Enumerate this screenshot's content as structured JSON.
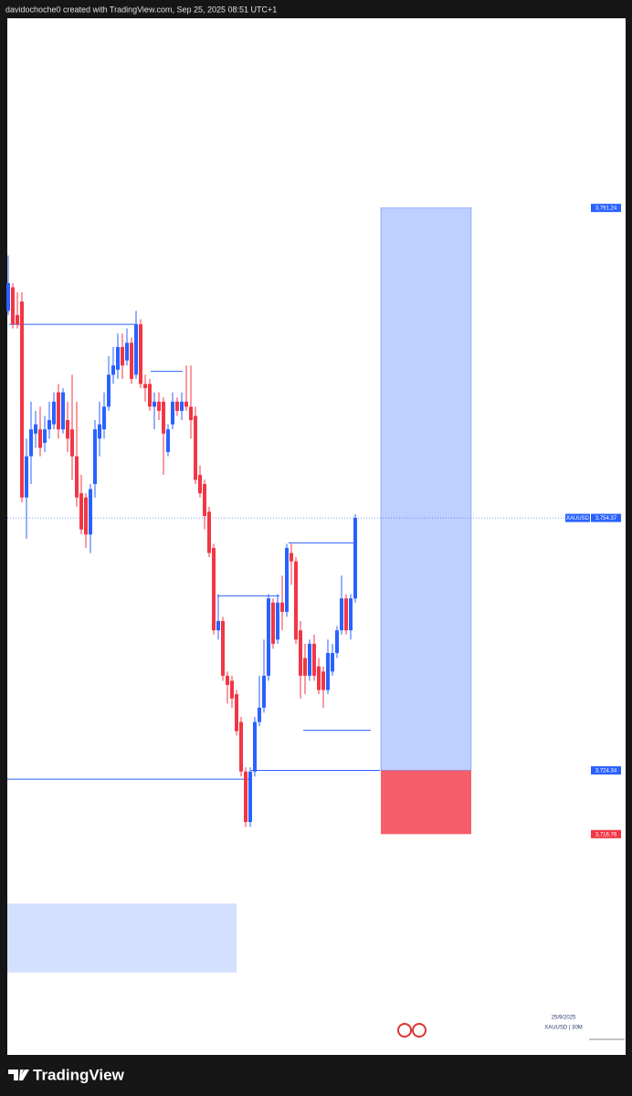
{
  "header": {
    "text": "davidochoche0 created with TradingView.com, Sep 25, 2025 08:51 UTC+1"
  },
  "chart_data": {
    "type": "candlestick",
    "symbol_label": "XAUUSD",
    "up_color": "#2962ff",
    "down_color": "#f23645",
    "ylim": [
      3690.5,
      3813.8
    ],
    "open": [
      3779.0,
      3781.8,
      3778.5,
      3780.1,
      3756.8,
      3761.7,
      3764.4,
      3764.9,
      3763.3,
      3764.9,
      3765.5,
      3769.3,
      3764.9,
      3766.0,
      3764.9,
      3761.7,
      3757.3,
      3756.8,
      3752.4,
      3758.4,
      3763.8,
      3764.9,
      3767.6,
      3771.4,
      3772.0,
      3774.7,
      3773.1,
      3775.2,
      3771.4,
      3777.4,
      3770.3,
      3770.3,
      3767.6,
      3768.2,
      3768.2,
      3762.2,
      3765.5,
      3768.2,
      3767.1,
      3768.2,
      3767.6,
      3766.5,
      3759.5,
      3758.4,
      3755.1,
      3750.8,
      3741.0,
      3742.1,
      3735.6,
      3735.0,
      3733.4,
      3730.1,
      3724.2,
      3718.2,
      3724.2,
      3730.1,
      3731.8,
      3735.6,
      3744.3,
      3739.9,
      3744.3,
      3743.2,
      3750.2,
      3749.2,
      3741.0,
      3737.7,
      3735.6,
      3739.4,
      3736.7,
      3736.1,
      3733.9,
      3736.1,
      3738.3,
      3741.0,
      3744.8,
      3741.0,
      3744.8
    ],
    "high": [
      3785.6,
      3782.3,
      3781.2,
      3781.2,
      3763.8,
      3768.2,
      3767.1,
      3767.6,
      3766.5,
      3768.2,
      3769.3,
      3770.3,
      3769.8,
      3768.2,
      3771.4,
      3768.2,
      3759.5,
      3757.3,
      3758.4,
      3766.0,
      3768.2,
      3769.3,
      3773.6,
      3774.7,
      3776.3,
      3776.3,
      3776.9,
      3775.8,
      3779.0,
      3778.0,
      3771.4,
      3770.9,
      3769.3,
      3769.3,
      3768.7,
      3765.5,
      3769.3,
      3768.7,
      3769.3,
      3772.5,
      3772.5,
      3767.6,
      3760.6,
      3758.9,
      3755.7,
      3751.3,
      3745.3,
      3742.6,
      3736.1,
      3735.6,
      3733.9,
      3730.7,
      3724.7,
      3724.7,
      3730.7,
      3735.6,
      3739.9,
      3745.3,
      3744.8,
      3745.3,
      3747.5,
      3751.3,
      3751.3,
      3749.7,
      3742.1,
      3739.4,
      3739.9,
      3740.5,
      3737.7,
      3736.7,
      3739.9,
      3739.4,
      3741.5,
      3747.5,
      3745.3,
      3745.3,
      3754.8
    ],
    "low": [
      3778.5,
      3776.9,
      3776.9,
      3756.2,
      3751.9,
      3758.4,
      3762.7,
      3761.7,
      3762.2,
      3763.8,
      3764.9,
      3763.8,
      3764.4,
      3762.2,
      3758.9,
      3755.7,
      3752.4,
      3750.8,
      3750.2,
      3756.8,
      3761.7,
      3763.8,
      3767.1,
      3770.3,
      3770.9,
      3770.9,
      3772.5,
      3770.3,
      3770.9,
      3769.8,
      3768.2,
      3767.1,
      3764.9,
      3766.0,
      3759.5,
      3761.7,
      3764.9,
      3766.5,
      3766.0,
      3767.1,
      3763.8,
      3758.4,
      3756.8,
      3753.0,
      3749.7,
      3740.5,
      3739.9,
      3735.0,
      3732.3,
      3731.8,
      3728.5,
      3723.6,
      3717.6,
      3717.6,
      3723.6,
      3729.6,
      3731.2,
      3735.0,
      3738.8,
      3739.4,
      3741.0,
      3742.6,
      3746.4,
      3739.4,
      3732.9,
      3733.4,
      3735.0,
      3735.0,
      3733.4,
      3731.8,
      3733.4,
      3735.6,
      3737.7,
      3740.5,
      3740.5,
      3739.9,
      3744.3
    ],
    "close": [
      3782.3,
      3777.4,
      3777.4,
      3756.8,
      3761.7,
      3764.9,
      3765.5,
      3762.7,
      3764.9,
      3766.0,
      3768.2,
      3764.9,
      3769.3,
      3763.8,
      3761.7,
      3756.8,
      3753.0,
      3752.4,
      3757.8,
      3764.9,
      3765.5,
      3767.6,
      3771.4,
      3772.5,
      3774.7,
      3772.5,
      3775.2,
      3770.9,
      3777.4,
      3770.3,
      3769.8,
      3767.6,
      3768.2,
      3767.1,
      3764.4,
      3764.9,
      3768.2,
      3767.1,
      3768.2,
      3767.6,
      3766.0,
      3758.9,
      3757.3,
      3754.6,
      3750.2,
      3741.0,
      3742.1,
      3735.6,
      3734.5,
      3732.9,
      3729.0,
      3724.2,
      3718.2,
      3724.2,
      3730.1,
      3731.8,
      3735.6,
      3744.8,
      3739.4,
      3744.3,
      3743.2,
      3750.8,
      3749.2,
      3739.9,
      3735.6,
      3735.6,
      3739.4,
      3735.6,
      3733.9,
      3733.9,
      3738.3,
      3738.3,
      3741.0,
      3744.8,
      3741.0,
      3744.8,
      3754.37
    ],
    "price_labels": [
      {
        "value": 3791.24,
        "label": "3,791.24",
        "color": "#2962ff"
      },
      {
        "value": 3754.37,
        "label": "3,754.37",
        "color": "#2962ff"
      },
      {
        "value": 3724.34,
        "label": "3,724.34",
        "color": "#2962ff"
      },
      {
        "value": 3716.76,
        "label": "3,716.76",
        "color": "#f23645"
      }
    ],
    "levels": [
      3777.4,
      3771.8,
      3745.1,
      3751.4,
      3729.1,
      3723.3
    ],
    "zone": [
      3700.3,
      3708.5
    ],
    "watermark": {
      "date": "25/9/2025",
      "symbol": "XAUUSD | 30M"
    }
  },
  "footer": {
    "logo": "TradingView"
  }
}
